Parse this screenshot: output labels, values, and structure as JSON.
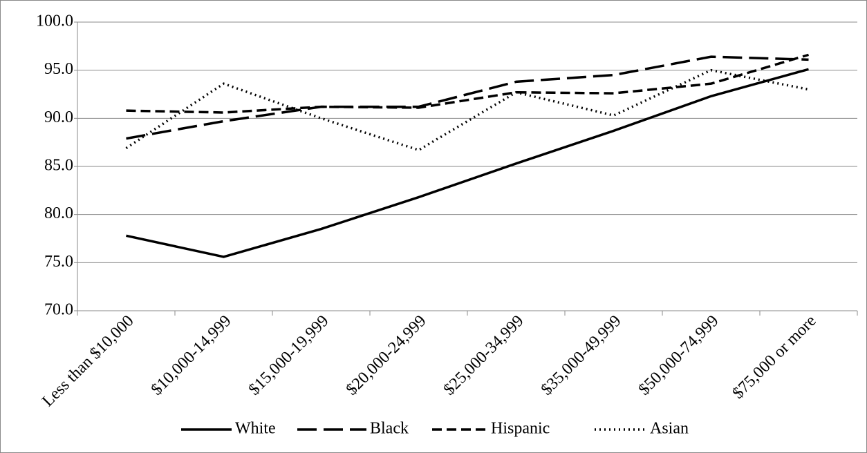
{
  "chart_data": {
    "type": "line",
    "categories": [
      "Less than $10,000",
      "$10,000-14,999",
      "$15,000-19,999",
      "$20,000-24,999",
      "$25,000-34,999",
      "$35,000-49,999",
      "$50,000-74,999",
      "$75,000 or more"
    ],
    "series": [
      {
        "name": "White",
        "color": "#000000",
        "line_style": "solid",
        "values": [
          77.8,
          75.6,
          78.5,
          81.8,
          85.3,
          88.7,
          92.3,
          95.1
        ]
      },
      {
        "name": "Black",
        "color": "#000000",
        "line_style": "long-dash",
        "values": [
          87.9,
          89.7,
          91.2,
          91.2,
          93.8,
          94.5,
          96.4,
          96.1
        ]
      },
      {
        "name": "Hispanic",
        "color": "#000000",
        "line_style": "dash",
        "values": [
          90.8,
          90.6,
          91.2,
          91.1,
          92.7,
          92.6,
          93.6,
          96.6
        ]
      },
      {
        "name": "Asian",
        "color": "#000000",
        "line_style": "dot",
        "values": [
          86.9,
          93.6,
          90.0,
          86.7,
          92.7,
          90.3,
          95.0,
          93.0
        ]
      }
    ],
    "ylim": [
      70,
      100
    ],
    "yticks": [
      {
        "value": 70,
        "label": "70.0"
      },
      {
        "value": 75,
        "label": "75.0"
      },
      {
        "value": 80,
        "label": "80.0"
      },
      {
        "value": 85,
        "label": "85.0"
      },
      {
        "value": 90,
        "label": "90.0"
      },
      {
        "value": 95,
        "label": "95.0"
      },
      {
        "value": 100,
        "label": "100.0"
      }
    ],
    "grid": true,
    "legend": "bottom"
  }
}
